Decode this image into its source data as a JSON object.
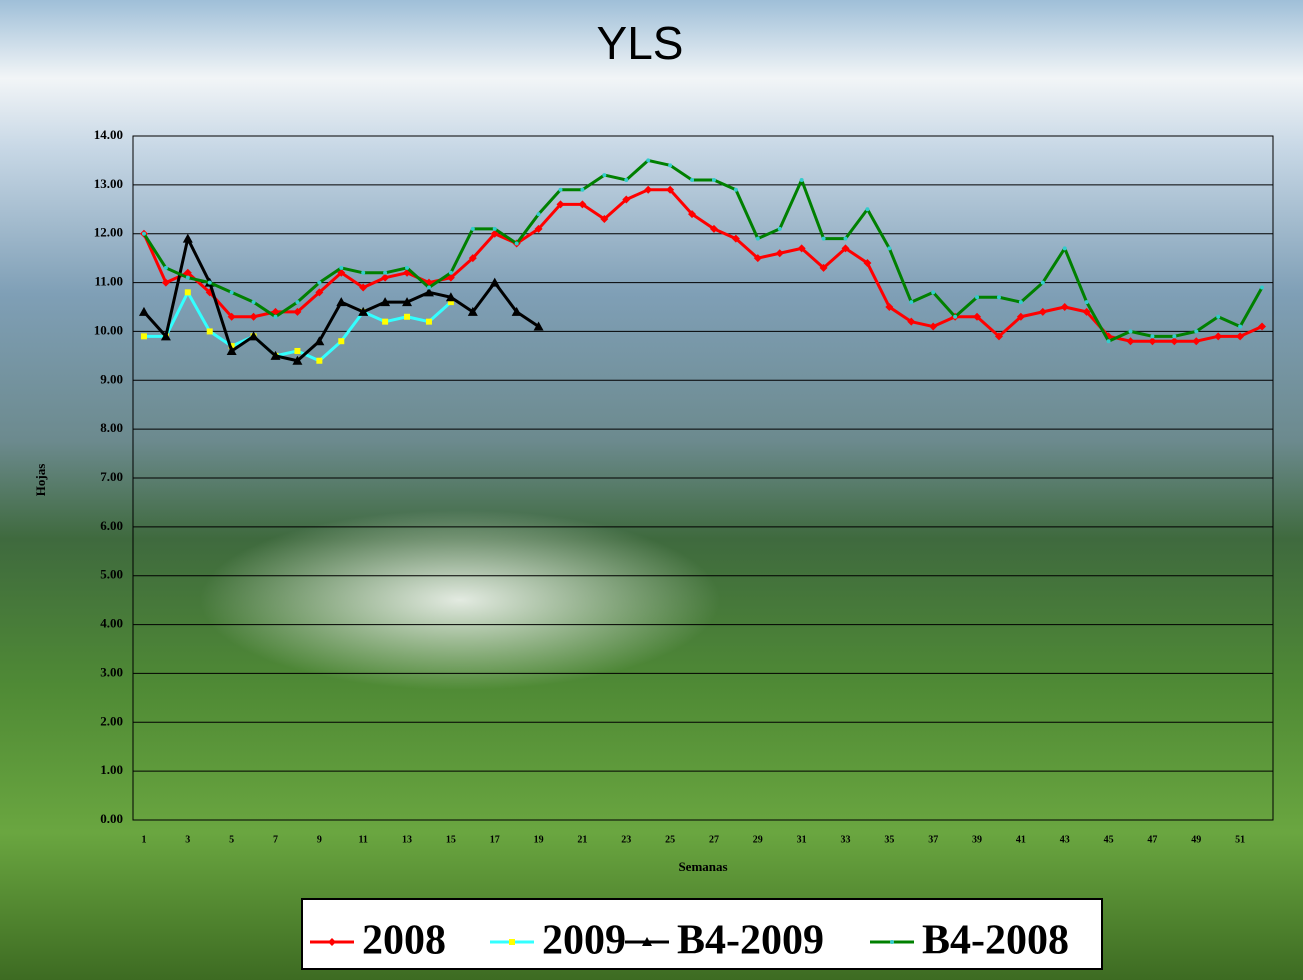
{
  "chart_data": {
    "type": "line",
    "title": "YLS",
    "x_label": "Semanas",
    "y_label": "Hojas",
    "categories": [
      1,
      null,
      3,
      null,
      5,
      null,
      7,
      null,
      9,
      null,
      11,
      null,
      13,
      null,
      15,
      null,
      17,
      null,
      19,
      null,
      21,
      null,
      23,
      null,
      25,
      null,
      27,
      null,
      29,
      null,
      31,
      null,
      33,
      null,
      35,
      null,
      37,
      null,
      39,
      null,
      41,
      null,
      43,
      null,
      45,
      null,
      47,
      null,
      49,
      null,
      51,
      null
    ],
    "ylim": [
      0,
      14
    ],
    "yticks": [
      {
        "value": 0,
        "label": "0.00"
      },
      {
        "value": 1,
        "label": "1.00"
      },
      {
        "value": 2,
        "label": "2.00"
      },
      {
        "value": 3,
        "label": "3.00"
      },
      {
        "value": 4,
        "label": "4.00"
      },
      {
        "value": 5,
        "label": "5.00"
      },
      {
        "value": 6,
        "label": "6.00"
      },
      {
        "value": 7,
        "label": "7.00"
      },
      {
        "value": 8,
        "label": "8.00"
      },
      {
        "value": 9,
        "label": "9.00"
      },
      {
        "value": 10,
        "label": "10.00"
      },
      {
        "value": 11,
        "label": "11.00"
      },
      {
        "value": 12,
        "label": "12.00"
      },
      {
        "value": 13,
        "label": "13.00"
      },
      {
        "value": 14,
        "label": "14.00"
      }
    ],
    "grid": true,
    "legend": "bottom",
    "series": [
      {
        "name": "2008",
        "color": "#ff0000",
        "marker": "diamond",
        "values": [
          12.0,
          11.0,
          11.2,
          10.8,
          10.3,
          10.3,
          10.4,
          10.4,
          10.8,
          11.2,
          10.9,
          11.1,
          11.2,
          11.0,
          11.1,
          11.5,
          12.0,
          11.8,
          12.1,
          12.6,
          12.6,
          12.3,
          12.7,
          12.9,
          12.9,
          12.4,
          12.1,
          11.9,
          11.5,
          11.6,
          11.7,
          11.3,
          11.7,
          11.4,
          10.5,
          10.2,
          10.1,
          10.3,
          10.3,
          9.9,
          10.3,
          10.4,
          10.5,
          10.4,
          9.9,
          9.8,
          9.8,
          9.8,
          9.8,
          9.9,
          9.9,
          10.1
        ]
      },
      {
        "name": "2009",
        "color": "#33ffff",
        "marker": "square",
        "values": [
          9.9,
          9.9,
          10.8,
          10.0,
          9.7,
          9.9,
          9.5,
          9.6,
          9.4,
          9.8,
          10.4,
          10.2,
          10.3,
          10.2,
          10.6,
          null,
          null,
          null,
          null,
          null,
          null,
          null,
          null,
          null,
          null,
          null,
          null,
          null,
          null,
          null,
          null,
          null,
          null,
          null,
          null,
          null,
          null,
          null,
          null,
          null,
          null,
          null,
          null,
          null,
          null,
          null,
          null,
          null,
          null,
          null,
          null,
          null
        ]
      },
      {
        "name": "B4-2009",
        "color": "#000000",
        "marker": "triangle",
        "values": [
          10.4,
          9.9,
          11.9,
          11.0,
          9.6,
          9.9,
          9.5,
          9.4,
          9.8,
          10.6,
          10.4,
          10.6,
          10.6,
          10.8,
          10.7,
          10.4,
          11.0,
          10.4,
          10.1,
          null,
          null,
          null,
          null,
          null,
          null,
          null,
          null,
          null,
          null,
          null,
          null,
          null,
          null,
          null,
          null,
          null,
          null,
          null,
          null,
          null,
          null,
          null,
          null,
          null,
          null,
          null,
          null,
          null,
          null,
          null,
          null,
          null
        ]
      },
      {
        "name": "B4-2008",
        "color": "#008000",
        "marker": "dot",
        "values": [
          12.0,
          11.3,
          11.1,
          11.0,
          10.8,
          10.6,
          10.3,
          10.6,
          11.0,
          11.3,
          11.2,
          11.2,
          11.3,
          10.9,
          11.2,
          12.1,
          12.1,
          11.8,
          12.4,
          12.9,
          12.9,
          13.2,
          13.1,
          13.5,
          13.4,
          13.1,
          13.1,
          12.9,
          11.9,
          12.1,
          13.1,
          11.9,
          11.9,
          12.5,
          11.7,
          10.6,
          10.8,
          10.3,
          10.7,
          10.7,
          10.6,
          11.0,
          11.7,
          10.6,
          9.8,
          10.0,
          9.9,
          9.9,
          10.0,
          10.3,
          10.1,
          10.9
        ]
      }
    ]
  }
}
